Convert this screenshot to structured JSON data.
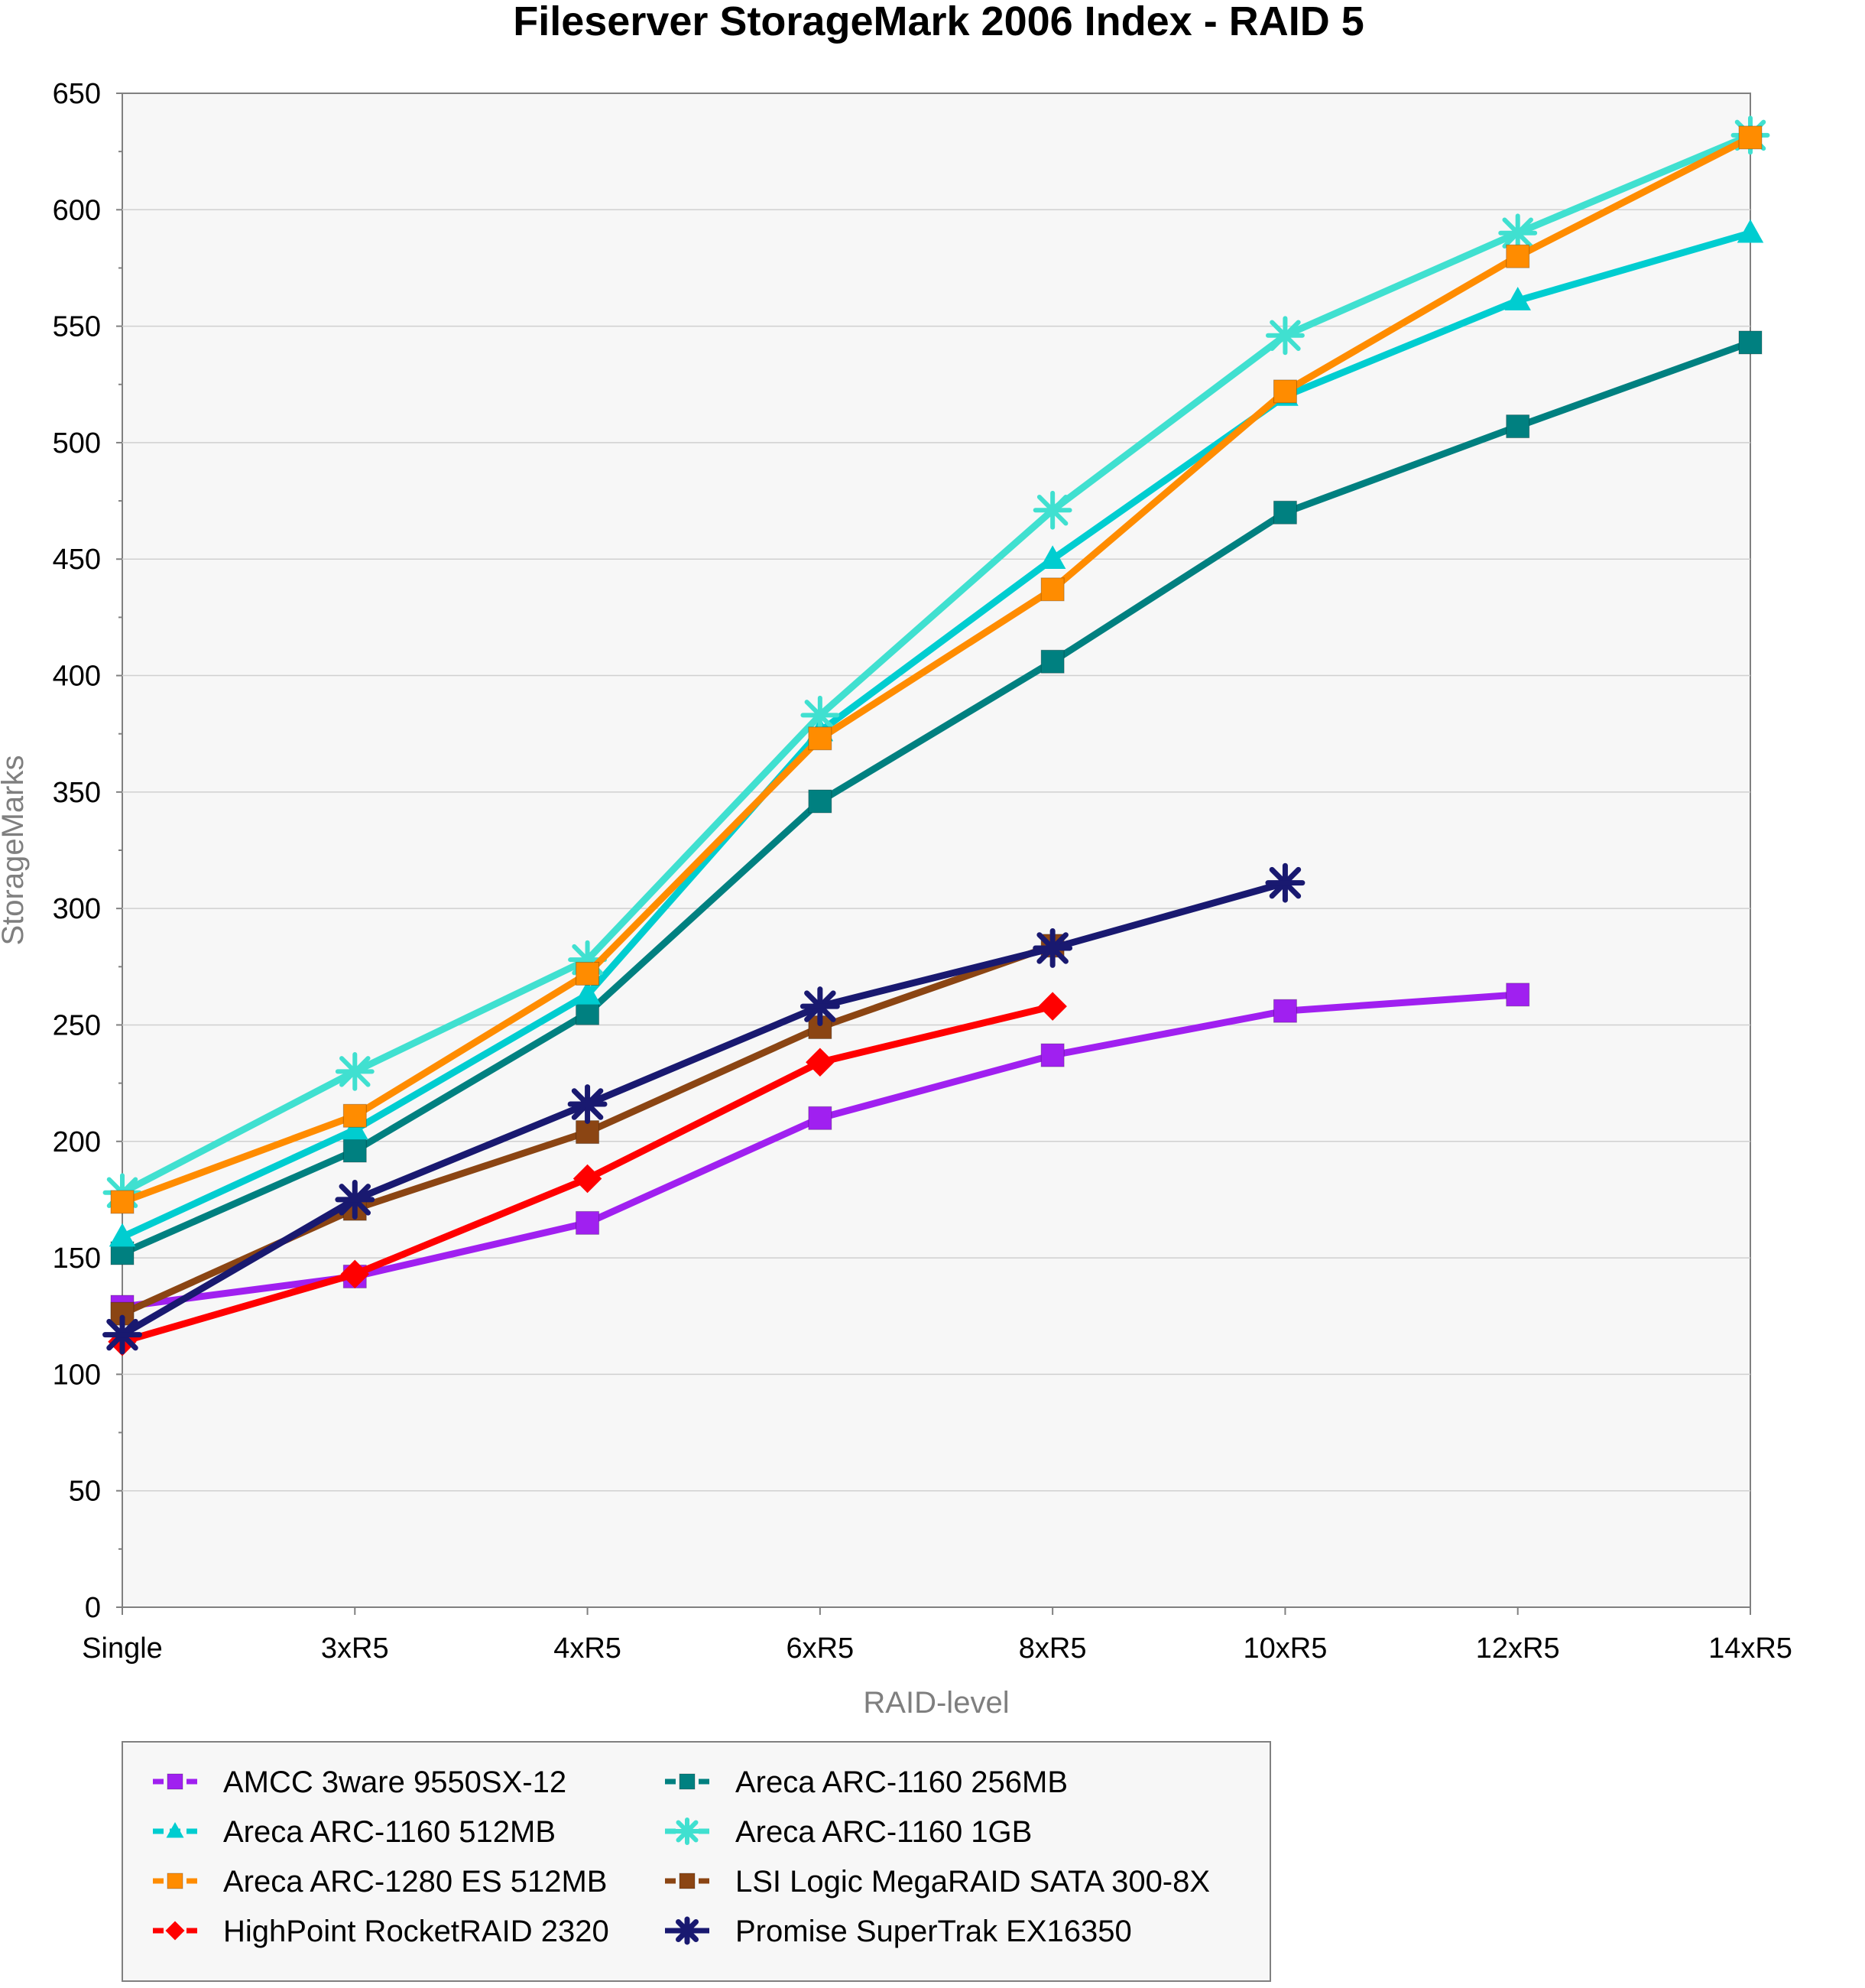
{
  "chart_data": {
    "type": "line",
    "title": "Fileserver StorageMark 2006 Index - RAID 5",
    "xlabel": "RAID-level",
    "ylabel": "StorageMarks",
    "categories": [
      "Single",
      "3xR5",
      "4xR5",
      "6xR5",
      "8xR5",
      "10xR5",
      "12xR5",
      "14xR5"
    ],
    "ylim": [
      0,
      650
    ],
    "yticks": [
      0,
      50,
      100,
      150,
      200,
      250,
      300,
      350,
      400,
      450,
      500,
      550,
      600,
      650
    ],
    "grid": true,
    "legend_position": "bottom",
    "series": [
      {
        "name": "AMCC 3ware 9550SX-12",
        "color": "#a020f0",
        "marker": "square",
        "values": [
          129,
          142,
          165,
          210,
          237,
          256,
          263,
          null
        ]
      },
      {
        "name": "Areca ARC-1160 256MB",
        "color": "#008080",
        "marker": "square",
        "values": [
          152,
          196,
          255,
          346,
          406,
          470,
          507,
          543
        ]
      },
      {
        "name": "Areca ARC-1160 512MB",
        "color": "#00cdd0",
        "marker": "triangle",
        "values": [
          159,
          205,
          263,
          376,
          450,
          520,
          561,
          590
        ]
      },
      {
        "name": "Areca ARC-1160 1GB",
        "color": "#40e0d0",
        "marker": "snowflake",
        "values": [
          178,
          230,
          278,
          383,
          471,
          546,
          590,
          632
        ]
      },
      {
        "name": "Areca ARC-1280 ES 512MB",
        "color": "#ff8c00",
        "marker": "square",
        "values": [
          174,
          211,
          272,
          373,
          437,
          522,
          580,
          631
        ]
      },
      {
        "name": "LSI Logic MegaRAID SATA 300-8X",
        "color": "#8b4513",
        "marker": "square",
        "values": [
          126,
          171,
          204,
          249,
          284,
          null,
          null,
          null
        ]
      },
      {
        "name": "HighPoint RocketRAID 2320",
        "color": "#ff0000",
        "marker": "diamond",
        "values": [
          114,
          143,
          184,
          234,
          258,
          null,
          null,
          null
        ]
      },
      {
        "name": "Promise SuperTrak EX16350",
        "color": "#191970",
        "marker": "star",
        "values": [
          117,
          175,
          216,
          258,
          283,
          311,
          null,
          null
        ]
      }
    ]
  }
}
